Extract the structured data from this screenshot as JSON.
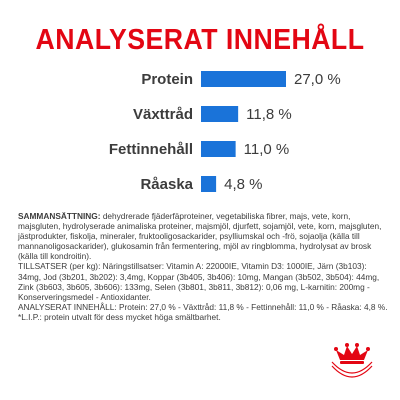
{
  "header": {
    "title": "ANALYSERAT INNEHÅLL"
  },
  "chart_data": {
    "type": "bar",
    "orientation": "horizontal",
    "categories": [
      "Protein",
      "Växttråd",
      "Fettinnehåll",
      "Råaska"
    ],
    "values": [
      27.0,
      11.8,
      11.0,
      4.8
    ],
    "value_labels": [
      "27,0 %",
      "11,8 %",
      "11,0 %",
      "4,8 %"
    ],
    "title": "ANALYSERAT INNEHÅLL",
    "xlim": [
      0,
      27.0
    ],
    "grid": false,
    "bar_color": "#1a73d9"
  },
  "composition": {
    "heading": "SAMMANSÄTTNING:",
    "text": "dehydrerade fjäderfäproteiner, vegetabiliska fibrer, majs, vete, korn, majsgluten, hydrolyserade animaliska proteiner, majsmjöl, djurfett, sojamjöl, vete, korn, majsgluten, jästprodukter, fiskolja, mineraler, fruktooligosackarider, psylliumskal och -frö, sojaolja (källa till mannanoligosackarider), glukosamin från fermentering, mjöl av ringblomma, hydrolysat av brosk (källa till kondroitin).",
    "additives": "TILLSATSER (per kg): Näringstillsatser: Vitamin A: 22000IE, Vitamin D3: 1000IE, Järn (3b103): 34mg, Jod (3b201, 3b202): 3,4mg, Koppar (3b405, 3b406): 10mg, Mangan (3b502, 3b504): 44mg, Zink (3b603, 3b605, 3b606): 133mg, Selen (3b801, 3b811, 3b812): 0,06 mg, L-karnitin: 200mg - Konserveringsmedel - Antioxidanter.",
    "analysis": "ANALYSERAT INNEHÅLL: Protein: 27,0 % - Växttråd: 11,8 % - Fettinnehåll: 11,0 % - Råaska: 4,8 %.",
    "footnote": "*L.I.P.: protein utvalt för dess mycket höga smältbarhet."
  },
  "brand": {
    "logo_text": "ROYAL CANIN",
    "primary_color": "#e30613"
  }
}
